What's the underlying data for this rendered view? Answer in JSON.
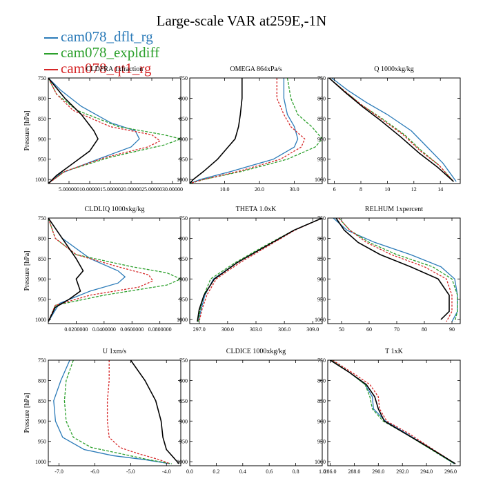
{
  "figure": {
    "title": "Large-scale VAR at259E,-1N",
    "legend": [
      {
        "label": "cam078_dflt_rg",
        "color": "#2a7ab8"
      },
      {
        "label": "cam078_expldiff",
        "color": "#2ca02c"
      },
      {
        "label": "cam078_qt1_rg",
        "color": "#d62728"
      }
    ]
  },
  "chart_data": [
    {
      "type": "line",
      "title": "CLDFRA 1xfraction",
      "ylabel": "Pressure [hPa]",
      "xlim": [
        0,
        0.32
      ],
      "xticks": [
        0.05,
        0.1,
        0.15,
        0.2,
        0.25,
        0.3
      ],
      "xticklabels": [
        "5.000000",
        "10.00000",
        "15.00000",
        "20.00000",
        "25.00000",
        "30.00000"
      ],
      "ylim": [
        750,
        1010
      ],
      "yticks": [
        750,
        800,
        850,
        900,
        950,
        1000
      ],
      "series": [
        {
          "color": "#2a7ab8",
          "dash": "",
          "x": [
            0.0,
            0.03,
            0.08,
            0.15,
            0.21,
            0.22,
            0.2,
            0.12,
            0.03,
            0.0
          ],
          "y": [
            750,
            780,
            820,
            860,
            880,
            900,
            920,
            950,
            985,
            1010
          ]
        },
        {
          "color": "#2ca02c",
          "dash": "4,2",
          "x": [
            0.0,
            0.02,
            0.07,
            0.17,
            0.28,
            0.32,
            0.28,
            0.15,
            0.04,
            0.0
          ],
          "y": [
            750,
            790,
            830,
            870,
            890,
            900,
            915,
            945,
            980,
            1010
          ]
        },
        {
          "color": "#d62728",
          "dash": "3,2",
          "x": [
            0.0,
            0.02,
            0.06,
            0.15,
            0.25,
            0.27,
            0.24,
            0.14,
            0.04,
            0.0
          ],
          "y": [
            750,
            790,
            830,
            870,
            890,
            905,
            920,
            945,
            980,
            1010
          ]
        },
        {
          "color": "#000000",
          "dash": "",
          "x": [
            0.0,
            0.04,
            0.08,
            0.11,
            0.12,
            0.1,
            0.06,
            0.02,
            0.0
          ],
          "y": [
            750,
            800,
            840,
            880,
            900,
            930,
            960,
            990,
            1010
          ]
        }
      ]
    },
    {
      "type": "line",
      "title": "OMEGA 864xPa/s",
      "ylabel": "",
      "xlim": [
        0,
        38
      ],
      "xticks": [
        10,
        20,
        30
      ],
      "xticklabels": [
        "10.0",
        "20.0",
        "30.0"
      ],
      "ylim": [
        750,
        1010
      ],
      "yticks": [
        750,
        800,
        850,
        900,
        950,
        1000
      ],
      "series": [
        {
          "color": "#2a7ab8",
          "dash": "",
          "x": [
            27,
            27,
            28,
            30,
            31,
            30,
            24,
            12,
            3,
            0
          ],
          "y": [
            750,
            800,
            840,
            870,
            900,
            920,
            950,
            980,
            1000,
            1010
          ]
        },
        {
          "color": "#2ca02c",
          "dash": "4,2",
          "x": [
            28,
            29,
            31,
            35,
            38,
            36,
            28,
            15,
            4,
            0
          ],
          "y": [
            750,
            800,
            840,
            870,
            900,
            920,
            950,
            980,
            1000,
            1010
          ]
        },
        {
          "color": "#d62728",
          "dash": "3,2",
          "x": [
            25,
            25,
            27,
            29,
            33,
            32,
            26,
            14,
            4,
            0
          ],
          "y": [
            750,
            800,
            840,
            870,
            900,
            920,
            950,
            980,
            1000,
            1010
          ]
        },
        {
          "color": "#000000",
          "dash": "",
          "x": [
            15,
            15,
            14.5,
            14,
            13,
            11,
            8,
            4,
            1,
            0
          ],
          "y": [
            750,
            800,
            840,
            870,
            900,
            920,
            950,
            980,
            1000,
            1010
          ]
        }
      ]
    },
    {
      "type": "line",
      "title": "Q 1000xkg/kg",
      "ylabel": "",
      "xlim": [
        5.5,
        15.5
      ],
      "xticks": [
        6,
        8,
        10,
        12,
        14
      ],
      "xticklabels": [
        "6",
        "8",
        "10",
        "12",
        "14"
      ],
      "ylim": [
        750,
        1010
      ],
      "yticks": [
        750,
        800,
        850,
        900,
        950,
        1000
      ],
      "series": [
        {
          "color": "#2a7ab8",
          "dash": "",
          "x": [
            5.8,
            7.0,
            8.4,
            10.0,
            11.8,
            13.0,
            14.2,
            15.2
          ],
          "y": [
            750,
            780,
            810,
            840,
            880,
            920,
            960,
            1005
          ]
        },
        {
          "color": "#2ca02c",
          "dash": "4,2",
          "x": [
            5.6,
            6.7,
            8.0,
            9.6,
            11.3,
            12.6,
            13.9,
            15.0
          ],
          "y": [
            750,
            780,
            815,
            850,
            890,
            930,
            965,
            1005
          ]
        },
        {
          "color": "#d62728",
          "dash": "3,2",
          "x": [
            5.6,
            6.7,
            8.0,
            9.5,
            11.2,
            12.5,
            13.9,
            15.0
          ],
          "y": [
            750,
            780,
            815,
            850,
            890,
            930,
            965,
            1005
          ]
        },
        {
          "color": "#000000",
          "dash": "",
          "x": [
            5.6,
            6.8,
            8.1,
            9.5,
            11.0,
            12.4,
            13.8,
            15.0
          ],
          "y": [
            750,
            785,
            820,
            855,
            895,
            935,
            970,
            1005
          ]
        }
      ]
    },
    {
      "type": "line",
      "title": "CLDLIQ 1000xkg/kg",
      "ylabel": "Pressure [hPa]",
      "xlim": [
        0,
        0.095
      ],
      "xticks": [
        0.02,
        0.04,
        0.06,
        0.08
      ],
      "xticklabels": [
        "0.0200000",
        "0.0400000",
        "0.0600000",
        "0.0800000"
      ],
      "ylim": [
        750,
        1010
      ],
      "yticks": [
        750,
        800,
        850,
        900,
        950,
        1000
      ],
      "series": [
        {
          "color": "#2a7ab8",
          "dash": "",
          "x": [
            0.0,
            0.01,
            0.03,
            0.05,
            0.055,
            0.05,
            0.03,
            0.008,
            0.0
          ],
          "y": [
            750,
            800,
            850,
            880,
            895,
            910,
            930,
            960,
            1005
          ]
        },
        {
          "color": "#2ca02c",
          "dash": "4,2",
          "x": [
            0.0,
            0.005,
            0.02,
            0.06,
            0.085,
            0.095,
            0.085,
            0.04,
            0.005,
            0.0
          ],
          "y": [
            750,
            800,
            840,
            870,
            885,
            900,
            915,
            940,
            965,
            1005
          ]
        },
        {
          "color": "#d62728",
          "dash": "3,2",
          "x": [
            0.0,
            0.005,
            0.02,
            0.05,
            0.072,
            0.075,
            0.065,
            0.03,
            0.005,
            0.0
          ],
          "y": [
            750,
            800,
            840,
            870,
            890,
            905,
            920,
            940,
            965,
            1005
          ]
        },
        {
          "color": "#000000",
          "dash": "",
          "x": [
            0.0,
            0.01,
            0.02,
            0.025,
            0.02,
            0.023,
            0.015,
            0.005,
            0.0
          ],
          "y": [
            750,
            800,
            850,
            880,
            900,
            930,
            950,
            970,
            1005
          ]
        }
      ]
    },
    {
      "type": "line",
      "title": "THETA 1.0xK",
      "ylabel": "",
      "xlim": [
        296,
        310
      ],
      "xticks": [
        297,
        300,
        303,
        306,
        309
      ],
      "xticklabels": [
        "297.0",
        "300.0",
        "303.0",
        "306.0",
        "309.0"
      ],
      "ylim": [
        750,
        1010
      ],
      "yticks": [
        750,
        800,
        850,
        900,
        950,
        1000
      ],
      "series": [
        {
          "color": "#2a7ab8",
          "dash": "",
          "x": [
            310.0,
            307.0,
            304.0,
            301.0,
            298.5,
            297.6,
            297.2,
            296.9
          ],
          "y": [
            750,
            780,
            820,
            860,
            900,
            940,
            975,
            1005
          ]
        },
        {
          "color": "#2ca02c",
          "dash": "4,2",
          "x": [
            310.0,
            307.0,
            303.8,
            300.8,
            298.2,
            297.5,
            297.1,
            296.9
          ],
          "y": [
            750,
            780,
            820,
            860,
            900,
            940,
            975,
            1005
          ]
        },
        {
          "color": "#d62728",
          "dash": "3,2",
          "x": [
            310.0,
            307.1,
            304.2,
            301.3,
            298.8,
            297.8,
            297.3,
            297.0
          ],
          "y": [
            750,
            780,
            820,
            860,
            900,
            940,
            975,
            1005
          ]
        },
        {
          "color": "#000000",
          "dash": "",
          "x": [
            310.0,
            307.0,
            304.0,
            301.0,
            298.6,
            297.5,
            297.0,
            296.8
          ],
          "y": [
            750,
            780,
            820,
            860,
            900,
            940,
            975,
            1005
          ]
        }
      ]
    },
    {
      "type": "line",
      "title": "RELHUM 1xpercent",
      "ylabel": "",
      "xlim": [
        45,
        93
      ],
      "xticks": [
        50,
        60,
        70,
        80,
        90
      ],
      "xticklabels": [
        "50",
        "60",
        "70",
        "80",
        "90"
      ],
      "ylim": [
        750,
        1010
      ],
      "yticks": [
        750,
        800,
        850,
        900,
        950,
        1000
      ],
      "series": [
        {
          "color": "#2a7ab8",
          "dash": "",
          "x": [
            47,
            52,
            62,
            75,
            86,
            91,
            92,
            92,
            90
          ],
          "y": [
            750,
            780,
            810,
            840,
            870,
            900,
            940,
            980,
            1005
          ]
        },
        {
          "color": "#2ca02c",
          "dash": "4,2",
          "x": [
            49,
            53,
            60,
            70,
            83,
            90,
            92,
            92,
            91
          ],
          "y": [
            750,
            780,
            810,
            840,
            870,
            900,
            940,
            980,
            1005
          ]
        },
        {
          "color": "#d62728",
          "dash": "3,2",
          "x": [
            49,
            53,
            59,
            68,
            80,
            88,
            90,
            90,
            88
          ],
          "y": [
            750,
            780,
            810,
            840,
            870,
            900,
            940,
            980,
            1005
          ]
        },
        {
          "color": "#000000",
          "dash": "",
          "x": [
            48,
            51,
            56,
            64,
            75,
            85,
            89,
            89,
            86
          ],
          "y": [
            750,
            780,
            810,
            840,
            870,
            900,
            940,
            980,
            1000
          ]
        }
      ]
    },
    {
      "type": "line",
      "title": "U 1xm/s",
      "ylabel": "Pressure [hPa]",
      "xlim": [
        -7.3,
        -3.6
      ],
      "xticks": [
        -7,
        -6,
        -5,
        -4
      ],
      "xticklabels": [
        "-7.0",
        "-6.0",
        "-5.0",
        "-4.0"
      ],
      "ylim": [
        750,
        1010
      ],
      "yticks": [
        750,
        800,
        850,
        900,
        950,
        1000
      ],
      "series": [
        {
          "color": "#2a7ab8",
          "dash": "",
          "x": [
            -6.7,
            -6.95,
            -7.15,
            -7.1,
            -6.9,
            -6.3,
            -5.5,
            -4.6,
            -3.9
          ],
          "y": [
            750,
            800,
            850,
            900,
            940,
            970,
            985,
            995,
            1005
          ]
        },
        {
          "color": "#2ca02c",
          "dash": "4,2",
          "x": [
            -6.6,
            -6.8,
            -6.85,
            -6.8,
            -6.6,
            -6.1,
            -5.3,
            -4.5,
            -3.85
          ],
          "y": [
            750,
            800,
            850,
            900,
            940,
            965,
            980,
            995,
            1005
          ]
        },
        {
          "color": "#d62728",
          "dash": "3,2",
          "x": [
            -5.6,
            -5.6,
            -5.65,
            -5.65,
            -5.6,
            -5.3,
            -4.8,
            -4.2,
            -3.9
          ],
          "y": [
            750,
            800,
            850,
            900,
            940,
            965,
            980,
            995,
            1005
          ]
        },
        {
          "color": "#000000",
          "dash": "",
          "x": [
            -5.0,
            -4.6,
            -4.3,
            -4.15,
            -4.1,
            -4.0,
            -3.8,
            -3.65
          ],
          "y": [
            750,
            800,
            850,
            900,
            940,
            970,
            990,
            1005
          ]
        }
      ]
    },
    {
      "type": "line",
      "title": "CLDICE 1000xkg/kg",
      "ylabel": "",
      "xlim": [
        0,
        1
      ],
      "xticks": [
        0.0,
        0.2,
        0.4,
        0.6,
        0.8,
        1.0
      ],
      "xticklabels": [
        "0.0",
        "0.2",
        "0.4",
        "0.6",
        "0.8",
        "1.0"
      ],
      "ylim": [
        750,
        1010
      ],
      "yticks": [
        750,
        800,
        850,
        900,
        950,
        1000
      ],
      "series": []
    },
    {
      "type": "line",
      "title": "T 1xK",
      "ylabel": "",
      "xlim": [
        285.8,
        296.8
      ],
      "xticks": [
        286,
        288,
        290,
        292,
        294,
        296
      ],
      "xticklabels": [
        "286.0",
        "288.0",
        "290.0",
        "292.0",
        "294.0",
        "296.0"
      ],
      "ylim": [
        750,
        1010
      ],
      "yticks": [
        750,
        800,
        850,
        900,
        950,
        1000
      ],
      "series": [
        {
          "color": "#2a7ab8",
          "dash": "",
          "x": [
            286.1,
            287.6,
            288.9,
            289.5,
            289.6,
            290.6,
            292.3,
            294.2,
            296.3
          ],
          "y": [
            750,
            780,
            810,
            840,
            870,
            900,
            930,
            965,
            1005
          ]
        },
        {
          "color": "#2ca02c",
          "dash": "4,2",
          "x": [
            286.1,
            287.6,
            288.9,
            289.3,
            289.5,
            290.4,
            292.2,
            294.1,
            296.3
          ],
          "y": [
            750,
            780,
            810,
            840,
            870,
            900,
            930,
            965,
            1005
          ]
        },
        {
          "color": "#d62728",
          "dash": "3,2",
          "x": [
            286.2,
            287.8,
            289.3,
            290.0,
            290.1,
            290.7,
            292.5,
            294.3,
            296.4
          ],
          "y": [
            750,
            780,
            810,
            840,
            870,
            900,
            930,
            965,
            1005
          ]
        },
        {
          "color": "#000000",
          "dash": "",
          "x": [
            286.0,
            287.6,
            289.0,
            289.7,
            290.0,
            290.5,
            292.2,
            294.2,
            296.4
          ],
          "y": [
            750,
            780,
            810,
            840,
            870,
            900,
            930,
            965,
            1005
          ]
        }
      ]
    }
  ]
}
